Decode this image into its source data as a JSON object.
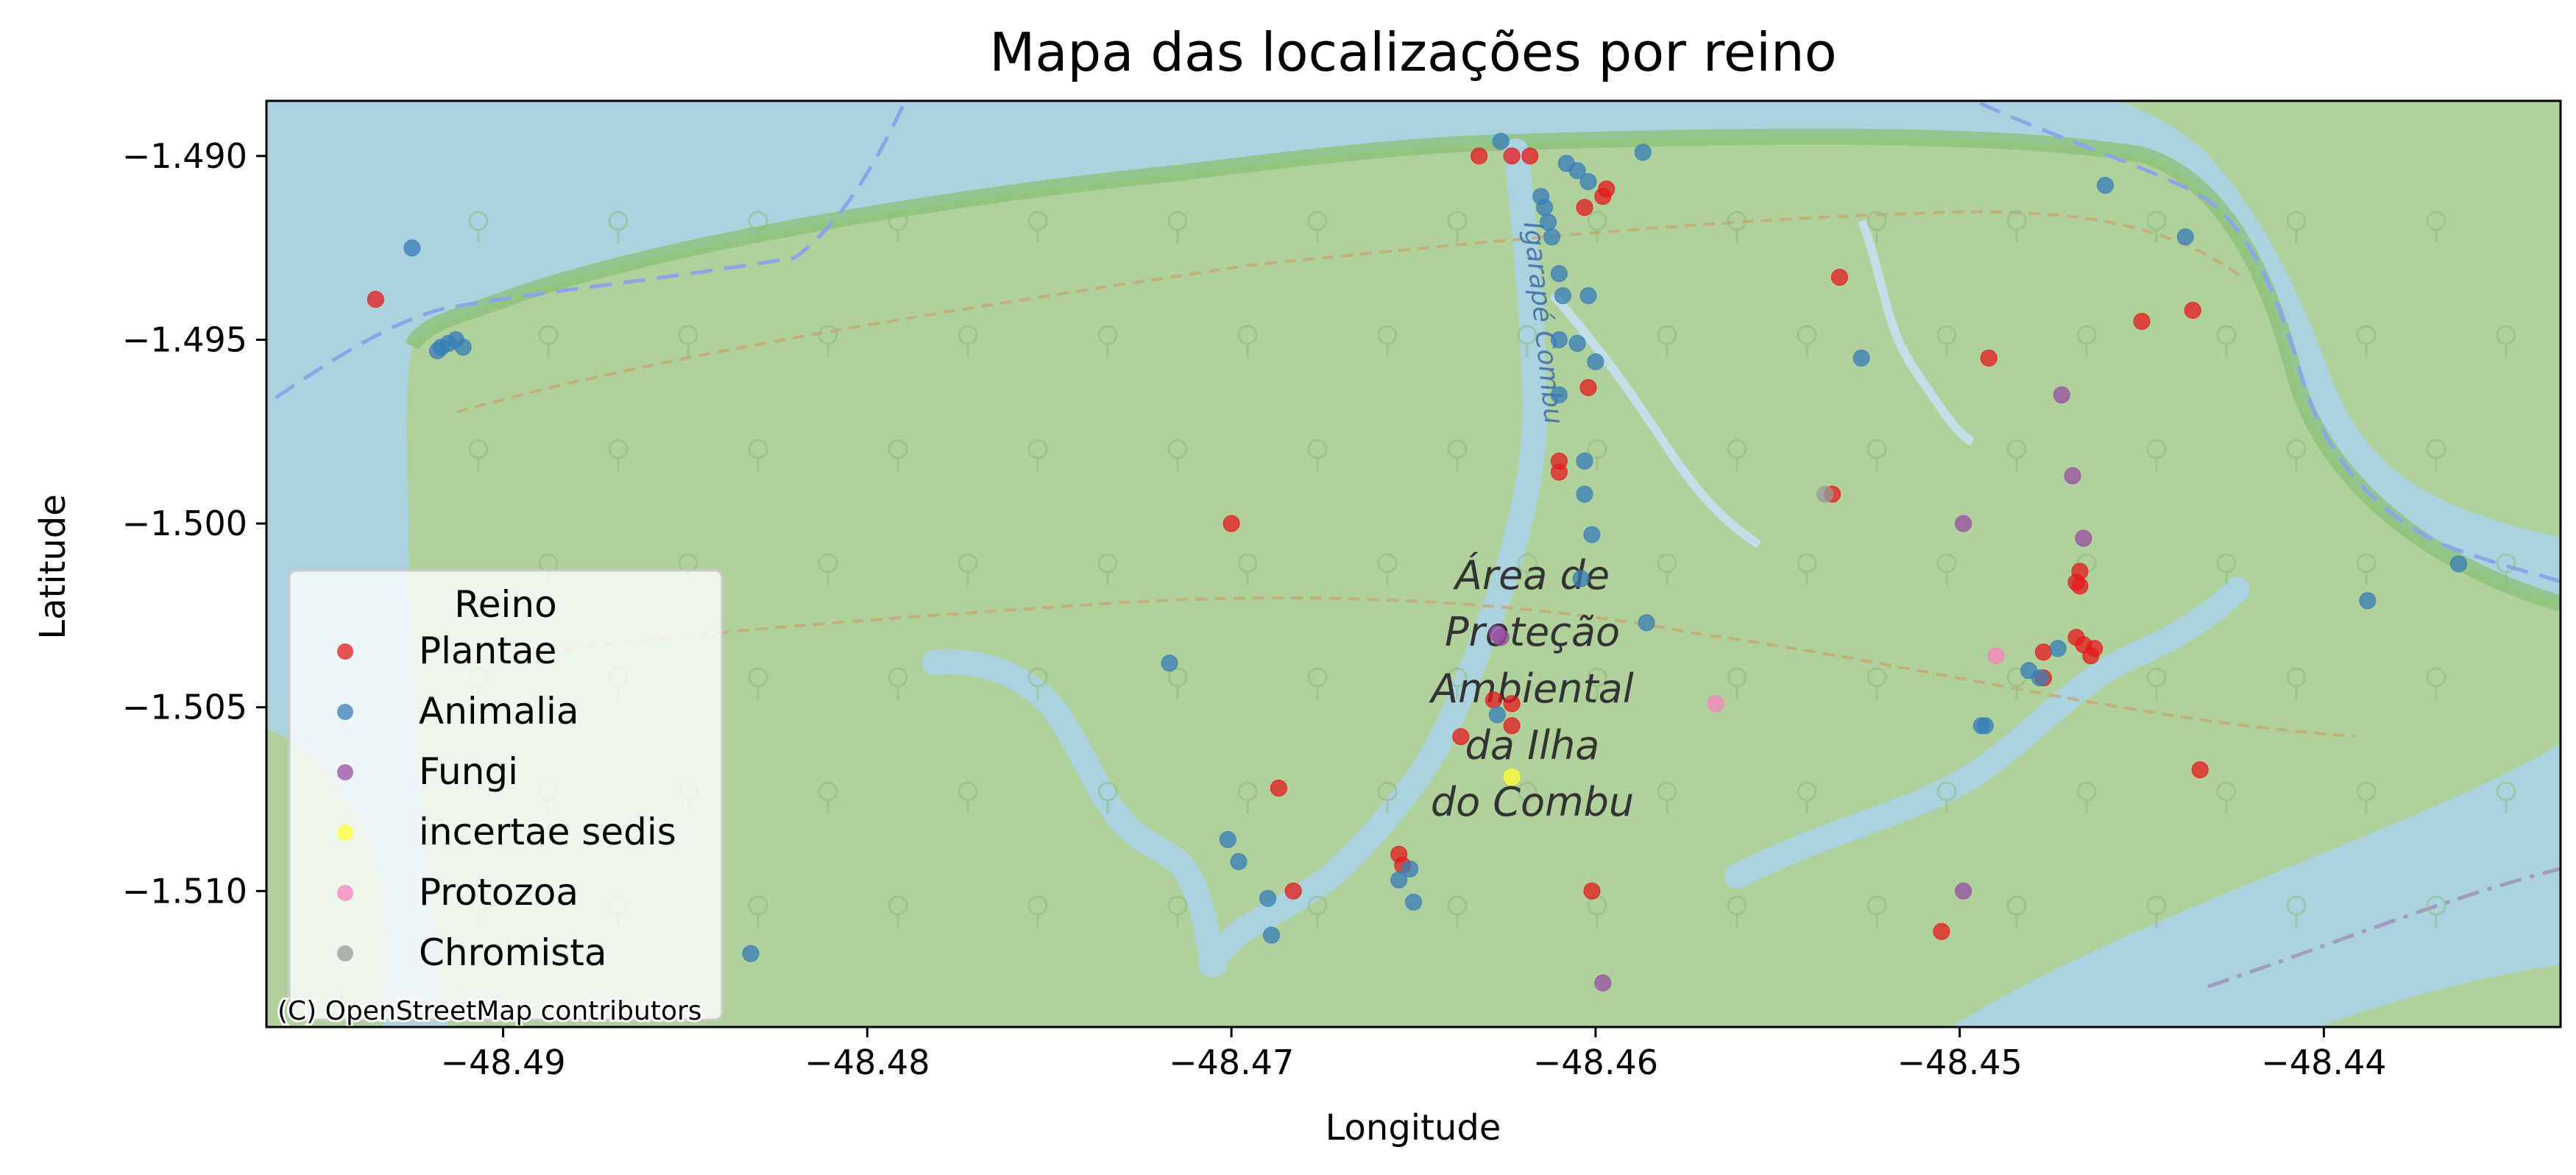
{
  "chart_data": {
    "type": "scatter",
    "title": "Mapa das localizações por reino",
    "xlabel": "Longitude",
    "ylabel": "Latitude",
    "xlim": [
      -48.4965,
      -48.4335
    ],
    "ylim": [
      -1.5137,
      -1.4885
    ],
    "xticks": [
      -48.49,
      -48.48,
      -48.47,
      -48.46,
      -48.45,
      -48.44
    ],
    "xtick_labels": [
      "−48.49",
      "−48.48",
      "−48.47",
      "−48.46",
      "−48.45",
      "−48.44"
    ],
    "yticks": [
      -1.49,
      -1.495,
      -1.5,
      -1.505,
      -1.51
    ],
    "ytick_labels": [
      "−1.490",
      "−1.495",
      "−1.500",
      "−1.505",
      "−1.510"
    ],
    "grid": false,
    "legend": {
      "title": "Reino",
      "placement": "lower-left"
    },
    "basemap": {
      "attribution": "(C) OpenStreetMap contributors",
      "area_label": [
        "Área de",
        "Proteção",
        "Ambiental",
        "da Ilha",
        "do Combu"
      ],
      "river_label": "Igarapé Combu",
      "water_color": "#aad3df",
      "land_color": "#b0d09c"
    },
    "series": [
      {
        "name": "Plantae",
        "color": "#e41a1c",
        "points": [
          [
            -48.4935,
            -1.4939
          ],
          [
            -48.4632,
            -1.49
          ],
          [
            -48.4623,
            -1.49
          ],
          [
            -48.4618,
            -1.49
          ],
          [
            -48.4603,
            -1.4914
          ],
          [
            -48.4598,
            -1.4911
          ],
          [
            -48.4597,
            -1.4909
          ],
          [
            -48.445,
            -1.4945
          ],
          [
            -48.4436,
            -1.4942
          ],
          [
            -48.4533,
            -1.4933
          ],
          [
            -48.4492,
            -1.4955
          ],
          [
            -48.4602,
            -1.4963
          ],
          [
            -48.461,
            -1.4983
          ],
          [
            -48.461,
            -1.4986
          ],
          [
            -48.4535,
            -1.4992
          ],
          [
            -48.47,
            -1.5
          ],
          [
            -48.4467,
            -1.5013
          ],
          [
            -48.4468,
            -1.5016
          ],
          [
            -48.4467,
            -1.5017
          ],
          [
            -48.4468,
            -1.5031
          ],
          [
            -48.4466,
            -1.5033
          ],
          [
            -48.4463,
            -1.5034
          ],
          [
            -48.4464,
            -1.5036
          ],
          [
            -48.4477,
            -1.5035
          ],
          [
            -48.4477,
            -1.5042
          ],
          [
            -48.4628,
            -1.5048
          ],
          [
            -48.4623,
            -1.5049
          ],
          [
            -48.4623,
            -1.5055
          ],
          [
            -48.4637,
            -1.5058
          ],
          [
            -48.4434,
            -1.5067
          ],
          [
            -48.4687,
            -1.5072
          ],
          [
            -48.4654,
            -1.509
          ],
          [
            -48.4653,
            -1.5093
          ],
          [
            -48.4683,
            -1.51
          ],
          [
            -48.4601,
            -1.51
          ],
          [
            -48.4505,
            -1.5111
          ]
        ]
      },
      {
        "name": "Animalia",
        "color": "#377eb8",
        "points": [
          [
            -48.4917,
            -1.4952
          ],
          [
            -48.4918,
            -1.4953
          ],
          [
            -48.4915,
            -1.4951
          ],
          [
            -48.4913,
            -1.495
          ],
          [
            -48.4911,
            -1.4952
          ],
          [
            -48.4925,
            -1.4925
          ],
          [
            -48.4626,
            -1.4896
          ],
          [
            -48.4608,
            -1.4902
          ],
          [
            -48.4605,
            -1.4904
          ],
          [
            -48.4602,
            -1.4907
          ],
          [
            -48.4587,
            -1.4899
          ],
          [
            -48.4615,
            -1.4911
          ],
          [
            -48.4614,
            -1.4914
          ],
          [
            -48.4613,
            -1.4918
          ],
          [
            -48.4612,
            -1.4922
          ],
          [
            -48.461,
            -1.4932
          ],
          [
            -48.4609,
            -1.4938
          ],
          [
            -48.4602,
            -1.4938
          ],
          [
            -48.461,
            -1.495
          ],
          [
            -48.4605,
            -1.4951
          ],
          [
            -48.46,
            -1.4956
          ],
          [
            -48.461,
            -1.4965
          ],
          [
            -48.4603,
            -1.4983
          ],
          [
            -48.4603,
            -1.4992
          ],
          [
            -48.4601,
            -1.5003
          ],
          [
            -48.4604,
            -1.5015
          ],
          [
            -48.4586,
            -1.5027
          ],
          [
            -48.4527,
            -1.4955
          ],
          [
            -48.4438,
            -1.4922
          ],
          [
            -48.446,
            -1.4908
          ],
          [
            -48.4388,
            -1.5021
          ],
          [
            -48.4363,
            -1.5011
          ],
          [
            -48.4717,
            -1.5038
          ],
          [
            -48.4478,
            -1.5042
          ],
          [
            -48.4473,
            -1.5034
          ],
          [
            -48.4481,
            -1.504
          ],
          [
            -48.4493,
            -1.5055
          ],
          [
            -48.4494,
            -1.5055
          ],
          [
            -48.4627,
            -1.5052
          ],
          [
            -48.4701,
            -1.5086
          ],
          [
            -48.4698,
            -1.5092
          ],
          [
            -48.469,
            -1.5102
          ],
          [
            -48.4689,
            -1.5112
          ],
          [
            -48.4651,
            -1.5094
          ],
          [
            -48.4654,
            -1.5097
          ],
          [
            -48.465,
            -1.5103
          ],
          [
            -48.4832,
            -1.5117
          ]
        ]
      },
      {
        "name": "Fungi",
        "color": "#984ea3",
        "points": [
          [
            -48.4627,
            -1.503
          ],
          [
            -48.4626,
            -1.5031
          ],
          [
            -48.4499,
            -1.5
          ],
          [
            -48.4472,
            -1.4965
          ],
          [
            -48.4469,
            -1.4987
          ],
          [
            -48.4466,
            -1.5004
          ],
          [
            -48.4499,
            -1.51
          ],
          [
            -48.4598,
            -1.5125
          ]
        ]
      },
      {
        "name": "incertae sedis",
        "color": "#ffff33",
        "points": [
          [
            -48.4623,
            -1.5069
          ]
        ]
      },
      {
        "name": "Protozoa",
        "color": "#f781bf",
        "points": [
          [
            -48.4567,
            -1.5049
          ],
          [
            -48.449,
            -1.5036
          ]
        ]
      },
      {
        "name": "Chromista",
        "color": "#999999",
        "points": [
          [
            -48.4537,
            -1.4992
          ]
        ]
      }
    ]
  }
}
